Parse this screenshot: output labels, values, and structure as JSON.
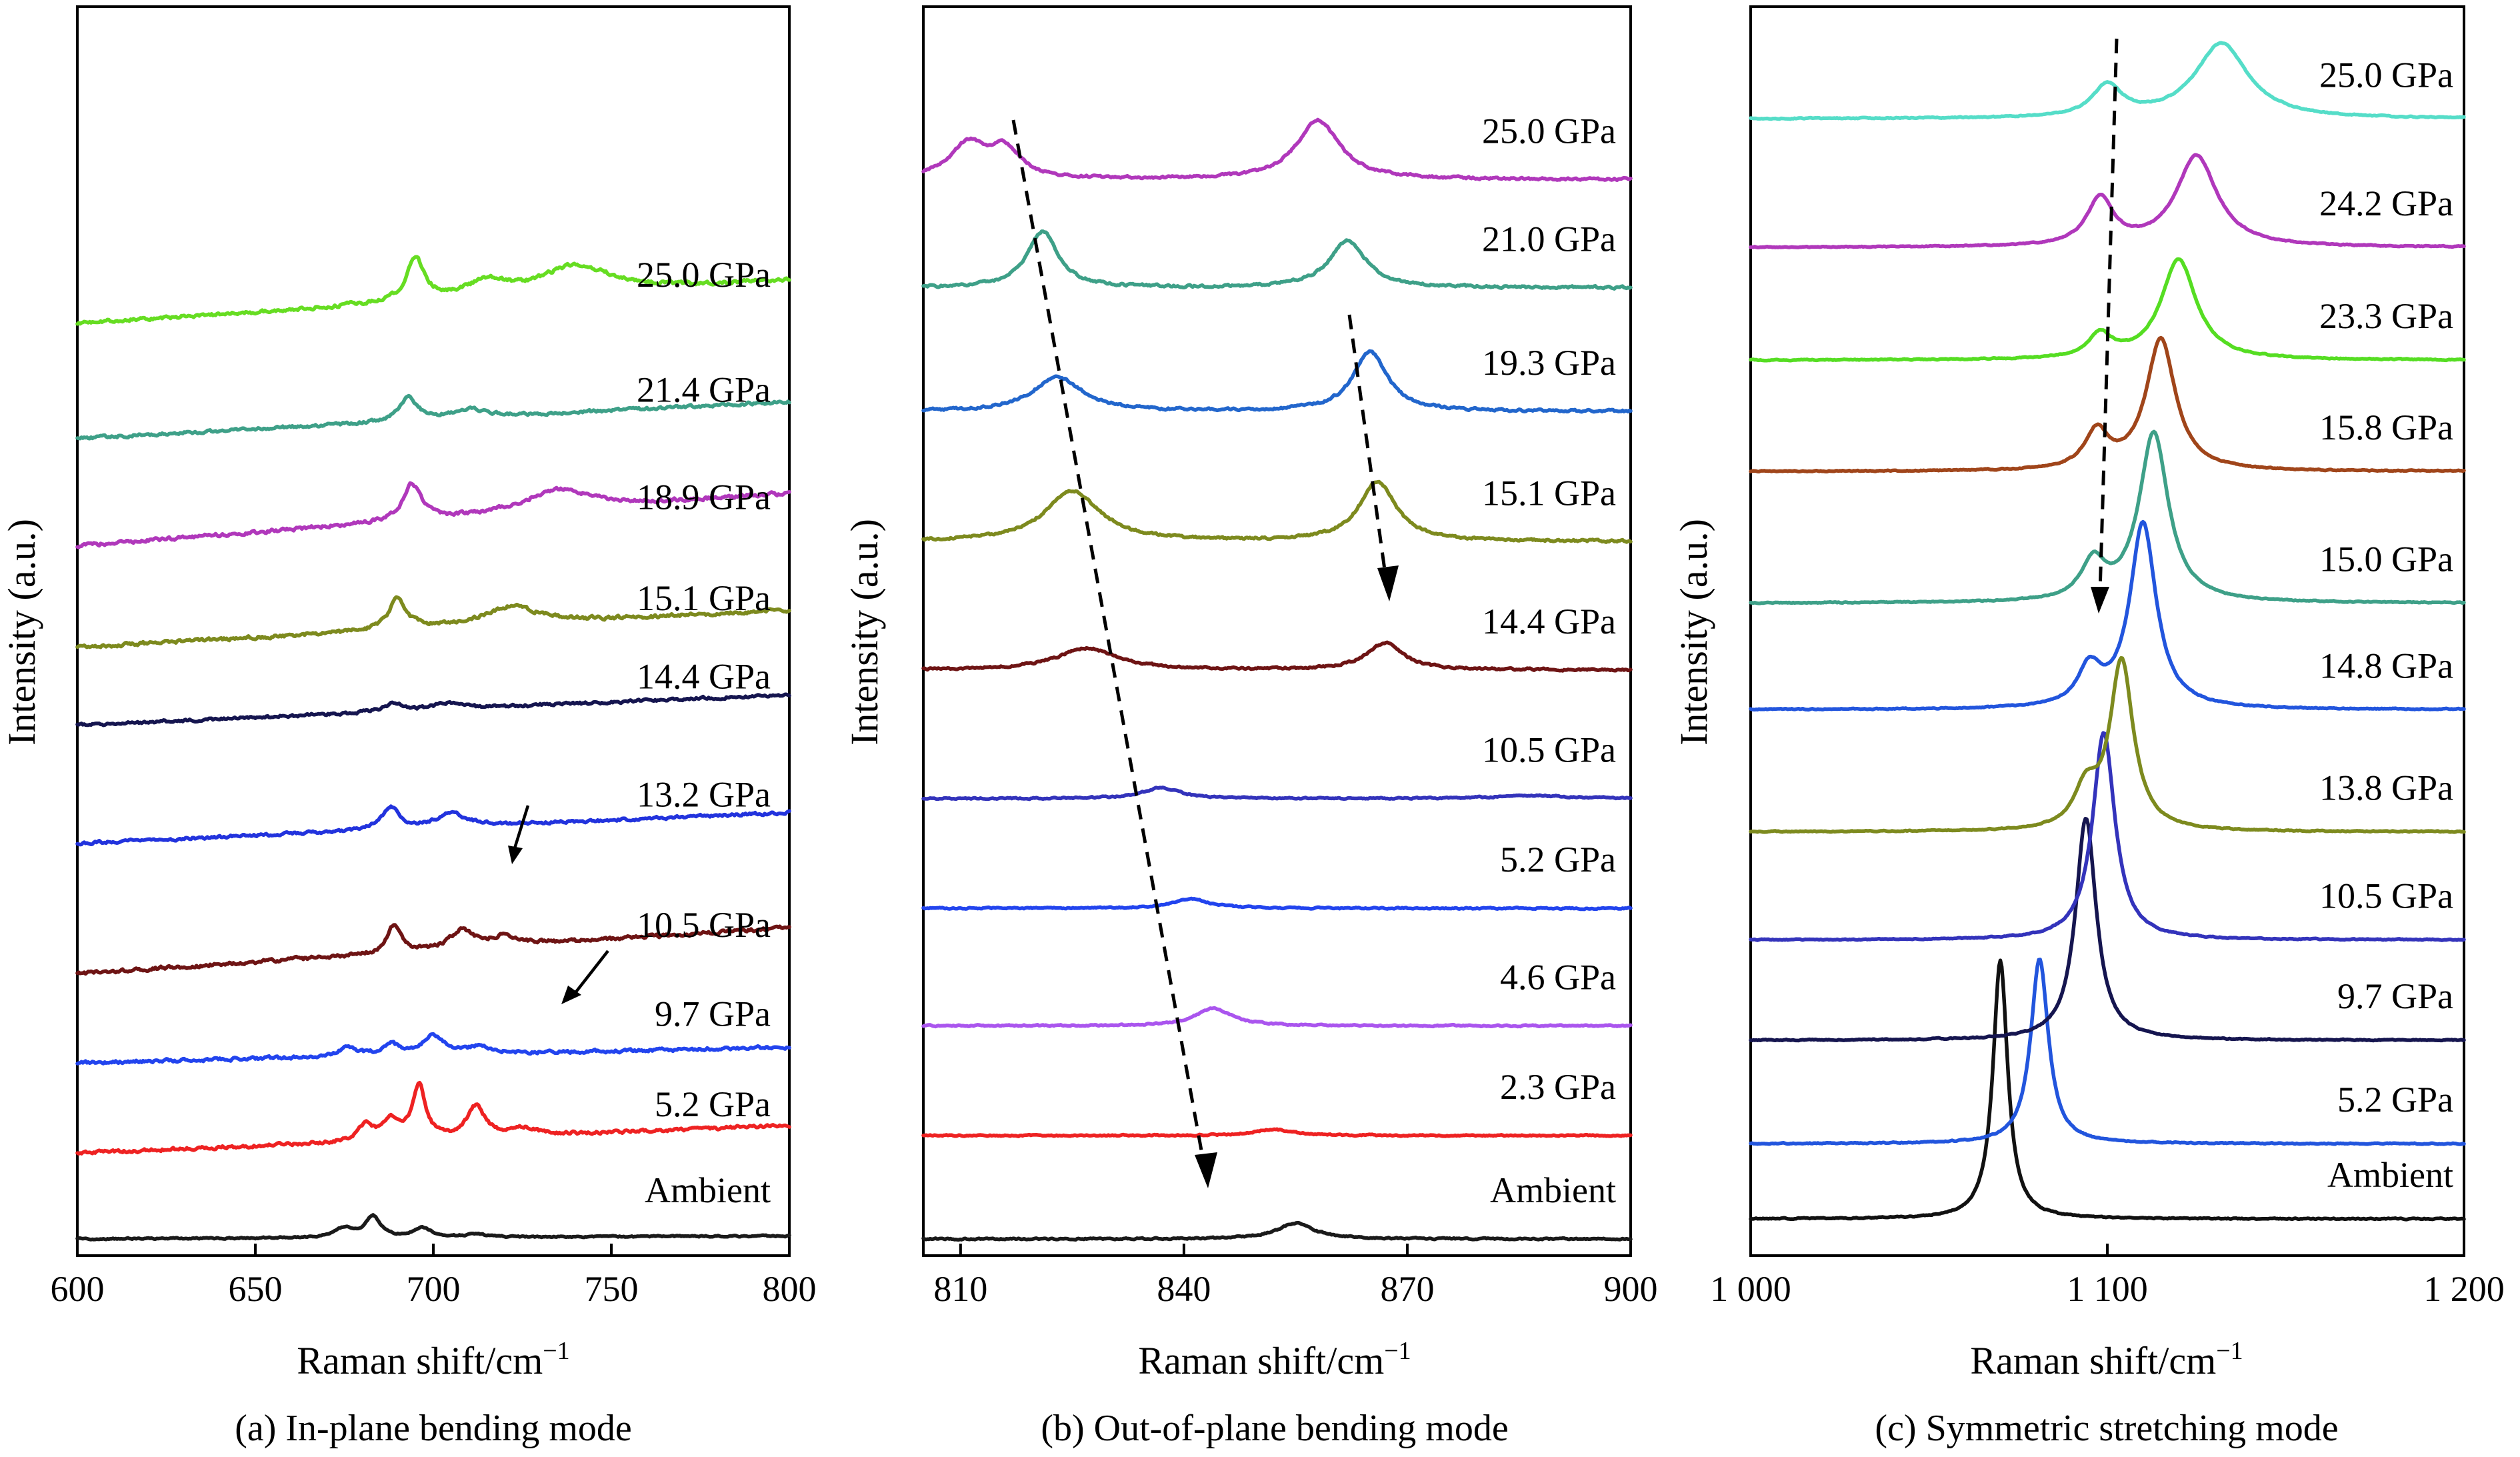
{
  "chart_data": [
    {
      "type": "line",
      "caption": "(a) In-plane bending mode",
      "xlabel": "Raman shift/cm",
      "xlabel_sup": "−1",
      "ylabel": "Intensity (a.u.)",
      "xlim": [
        600,
        800
      ],
      "xticks": [
        600,
        650,
        700,
        750,
        800
      ],
      "xtick_labels": [
        "600",
        "650",
        "700",
        "750",
        "800"
      ],
      "y_units": "arbitrary, vertically offset traces",
      "series": [
        {
          "label": "Ambient",
          "color": "#1a1a1a",
          "offset": 0,
          "slope": 0.01,
          "noise": 0.8,
          "peaks": [
            [
              675,
              6,
              3
            ],
            [
              683,
              14,
              2.5
            ],
            [
              697,
              6,
              3
            ],
            [
              712,
              2,
              3
            ]
          ]
        },
        {
          "label": "5.2 GPa",
          "color": "#ee2222",
          "offset": 56,
          "slope": 0.09,
          "noise": 1.8,
          "peaks": [
            [
              681,
              10,
              2.5
            ],
            [
              688,
              12,
              3
            ],
            [
              696,
              34,
              2.2
            ],
            [
              712,
              20,
              3
            ],
            [
              725,
              5,
              4
            ]
          ]
        },
        {
          "label": "9.7 GPa",
          "color": "#2244ee",
          "offset": 115,
          "slope": 0.05,
          "noise": 1.8,
          "peaks": [
            [
              676,
              6,
              3
            ],
            [
              688,
              7,
              3
            ],
            [
              700,
              12,
              3.5
            ],
            [
              713,
              5,
              4
            ]
          ]
        },
        {
          "label": "10.5 GPa",
          "color": "#6e1414",
          "offset": 173,
          "slope": 0.15,
          "noise": 2.0,
          "peaks": [
            [
              689,
              18,
              2.2
            ],
            [
              708,
              12,
              4
            ],
            [
              720,
              6,
              5
            ]
          ]
        },
        {
          "label": "13.2 GPa",
          "color": "#2233dd",
          "offset": 258,
          "slope": 0.1,
          "noise": 1.6,
          "peaks": [
            [
              688,
              14,
              3
            ],
            [
              705,
              9,
              5
            ]
          ]
        },
        {
          "label": "14.4 GPa",
          "color": "#15154f",
          "offset": 335,
          "slope": 0.1,
          "noise": 1.6,
          "peaks": [
            [
              689,
              5,
              3
            ],
            [
              704,
              4,
              5
            ]
          ]
        },
        {
          "label": "15.1 GPa",
          "color": "#7d8a1e",
          "offset": 386,
          "slope": 0.12,
          "noise": 2.0,
          "peaks": [
            [
              690,
              20,
              3
            ],
            [
              722,
              12,
              9
            ]
          ]
        },
        {
          "label": "18.9 GPa",
          "color": "#b038bb",
          "offset": 452,
          "slope": 0.17,
          "noise": 2.0,
          "peaks": [
            [
              694,
              24,
              3
            ],
            [
              735,
              14,
              11
            ]
          ]
        },
        {
          "label": "21.4 GPa",
          "color": "#3ea088",
          "offset": 522,
          "slope": 0.12,
          "noise": 1.6,
          "peaks": [
            [
              693,
              15,
              3
            ],
            [
              710,
              6,
              6
            ]
          ]
        },
        {
          "label": "25.0 GPa",
          "color": "#66dd22",
          "offset": 597,
          "slope": 0.14,
          "noise": 2.0,
          "peaks": [
            [
              695,
              28,
              3
            ],
            [
              715,
              10,
              7
            ],
            [
              740,
              18,
              12
            ]
          ]
        }
      ]
    },
    {
      "type": "line",
      "caption": "(b) Out-of-plane bending mode",
      "xlabel": "Raman shift/cm",
      "xlabel_sup": "−1",
      "ylabel": "Intensity (a.u.)",
      "xlim": [
        805,
        900
      ],
      "xticks": [
        810,
        840,
        870,
        900
      ],
      "xtick_labels": [
        "810",
        "840",
        "870",
        "900"
      ],
      "y_units": "arbitrary, vertically offset traces",
      "series": [
        {
          "label": "Ambient",
          "color": "#1a1a1a",
          "offset": 0,
          "slope": 0,
          "noise": 0.8,
          "peaks": [
            [
              855,
              10,
              3
            ]
          ]
        },
        {
          "label": "2.3 GPa",
          "color": "#ee2222",
          "offset": 66,
          "slope": 0,
          "noise": 0.8,
          "peaks": [
            [
              852,
              4,
              3
            ]
          ]
        },
        {
          "label": "4.6 GPa",
          "color": "#aa55ee",
          "offset": 136,
          "slope": 0,
          "noise": 0.8,
          "peaks": [
            [
              844,
              11,
              3
            ]
          ]
        },
        {
          "label": "5.2 GPa",
          "color": "#2244ee",
          "offset": 211,
          "slope": 0,
          "noise": 0.8,
          "peaks": [
            [
              841,
              6,
              3
            ]
          ]
        },
        {
          "label": "10.5 GPa",
          "color": "#3333bb",
          "offset": 281,
          "slope": 0,
          "noise": 0.8,
          "peaks": [
            [
              837,
              7,
              3
            ],
            [
              887,
              2,
              6
            ]
          ]
        },
        {
          "label": "14.4 GPa",
          "color": "#6e1414",
          "offset": 363,
          "slope": 0,
          "noise": 1.1,
          "peaks": [
            [
              827,
              14,
              5
            ],
            [
              867,
              17,
              3
            ]
          ]
        },
        {
          "label": "15.1 GPa",
          "color": "#7d8a1e",
          "offset": 445,
          "slope": 0,
          "noise": 1.3,
          "peaks": [
            [
              825,
              32,
              4.5
            ],
            [
              866,
              38,
              3
            ]
          ]
        },
        {
          "label": "19.3 GPa",
          "color": "#2266cc",
          "offset": 528,
          "slope": 0,
          "noise": 1.3,
          "peaks": [
            [
              823,
              22,
              4
            ],
            [
              865,
              38,
              2.8
            ]
          ]
        },
        {
          "label": "21.0 GPa",
          "color": "#3ea088",
          "offset": 607,
          "slope": 0,
          "noise": 1.3,
          "peaks": [
            [
              821,
              36,
              2.5
            ],
            [
              862,
              30,
              3
            ]
          ]
        },
        {
          "label": "25.0 GPa",
          "color": "#b038bb",
          "offset": 676,
          "slope": 0,
          "noise": 1.3,
          "peaks": [
            [
              811,
              22,
              3
            ],
            [
              816,
              18,
              2.5
            ],
            [
              858,
              38,
              3.5
            ]
          ]
        }
      ]
    },
    {
      "type": "line",
      "caption": "(c) Symmetric stretching mode",
      "xlabel": "Raman shift/cm",
      "xlabel_sup": "−1",
      "ylabel": "Intensity (a.u.)",
      "xlim": [
        1000,
        1200
      ],
      "xticks": [
        1000,
        1100,
        1200
      ],
      "xtick_labels": [
        "1 000",
        "1 100",
        "1 200"
      ],
      "y_units": "arbitrary, vertically offset traces",
      "series": [
        {
          "label": "Ambient",
          "color": "#111111",
          "offset": 0,
          "slope": 0,
          "noise": 0.6,
          "peaks": [
            [
              1070,
              165,
              2.5
            ]
          ]
        },
        {
          "label": "5.2 GPa",
          "color": "#2255dd",
          "offset": 48,
          "slope": 0,
          "noise": 0.6,
          "peaks": [
            [
              1081,
              118,
              3
            ]
          ]
        },
        {
          "label": "9.7 GPa",
          "color": "#15154f",
          "offset": 114,
          "slope": 0,
          "noise": 0.6,
          "peaks": [
            [
              1094,
              142,
              3.5
            ]
          ]
        },
        {
          "label": "10.5 GPa",
          "color": "#3333bb",
          "offset": 178,
          "slope": 0,
          "noise": 0.6,
          "peaks": [
            [
              1099,
              132,
              3.8
            ]
          ]
        },
        {
          "label": "13.8 GPa",
          "color": "#7d8a1e",
          "offset": 247,
          "slope": 0,
          "noise": 0.6,
          "peaks": [
            [
              1094,
              24,
              4
            ],
            [
              1104,
              108,
              4
            ]
          ]
        },
        {
          "label": "14.8 GPa",
          "color": "#2255dd",
          "offset": 325,
          "slope": 0,
          "noise": 0.6,
          "peaks": [
            [
              1095,
              24,
              4
            ],
            [
              1110,
              118,
              4.5
            ]
          ]
        },
        {
          "label": "15.0 GPa",
          "color": "#3ea088",
          "offset": 393,
          "slope": 0,
          "noise": 0.6,
          "peaks": [
            [
              1096,
              24,
              4
            ],
            [
              1113,
              108,
              5
            ]
          ]
        },
        {
          "label": "15.8 GPa",
          "color": "#a0451a",
          "offset": 477,
          "slope": 0,
          "noise": 0.6,
          "peaks": [
            [
              1097,
              24,
              4
            ],
            [
              1115,
              84,
              5
            ]
          ]
        },
        {
          "label": "23.3 GPa",
          "color": "#55dd22",
          "offset": 548,
          "slope": 0,
          "noise": 0.6,
          "peaks": [
            [
              1098,
              15,
              4
            ],
            [
              1120,
              64,
              6
            ]
          ]
        },
        {
          "label": "24.2 GPa",
          "color": "#b038bb",
          "offset": 620,
          "slope": 0,
          "noise": 0.6,
          "peaks": [
            [
              1098,
              30,
              4.5
            ],
            [
              1125,
              58,
              7
            ]
          ]
        },
        {
          "label": "25.0 GPa",
          "color": "#55ddc8",
          "offset": 702,
          "slope": 0,
          "noise": 0.6,
          "peaks": [
            [
              1100,
              20,
              5
            ],
            [
              1132,
              48,
              9
            ]
          ]
        }
      ]
    }
  ]
}
